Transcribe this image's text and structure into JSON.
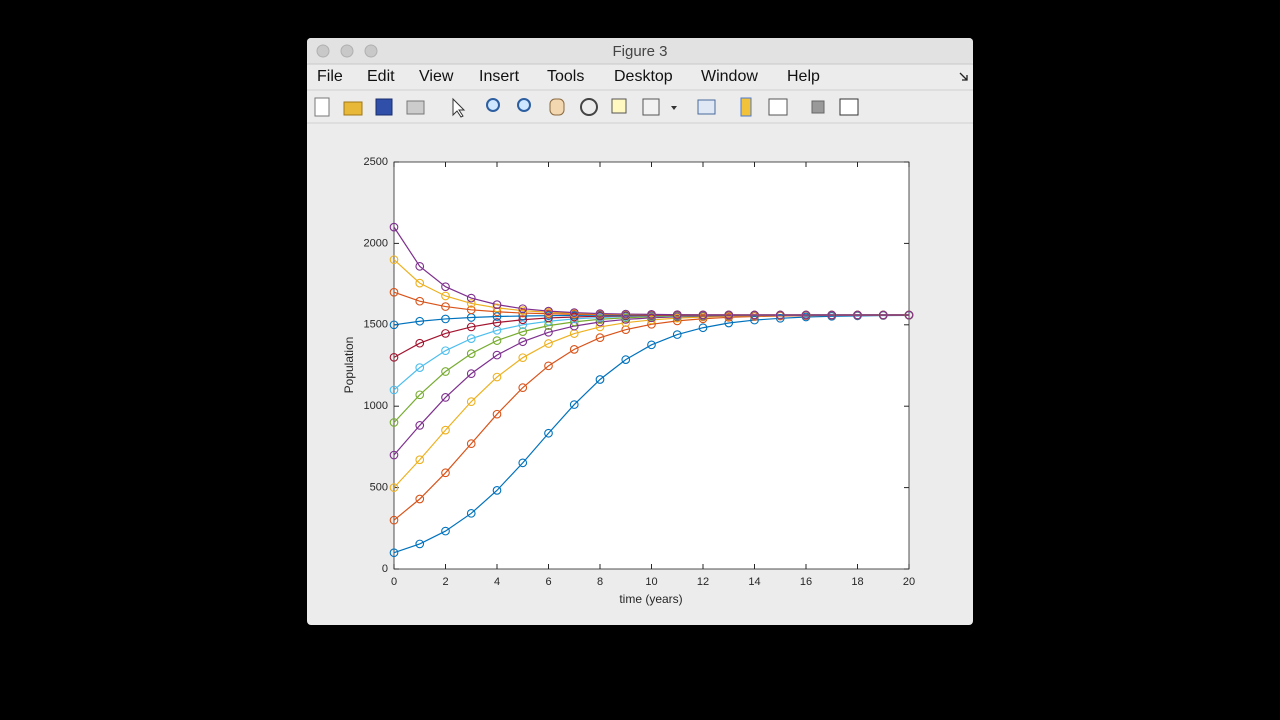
{
  "window": {
    "title": "Figure 3",
    "menu": [
      "File",
      "Edit",
      "View",
      "Insert",
      "Tools",
      "Desktop",
      "Window",
      "Help"
    ]
  },
  "chart_data": {
    "type": "line",
    "xlabel": "time (years)",
    "ylabel": "Population",
    "x": [
      0,
      1,
      2,
      3,
      4,
      5,
      6,
      7,
      8,
      9,
      10,
      11,
      12,
      13,
      14,
      15,
      16,
      17,
      18,
      19,
      20
    ],
    "xlim": [
      0,
      20
    ],
    "ylim": [
      0,
      2500
    ],
    "xticks": [
      0,
      2,
      4,
      6,
      8,
      10,
      12,
      14,
      16,
      18,
      20
    ],
    "yticks": [
      0,
      500,
      1000,
      1500,
      2000,
      2500
    ],
    "grid": false,
    "marker": "circle",
    "series": [
      {
        "color": "#0072BD",
        "values": [
          100,
          154,
          233,
          342,
          483,
          652,
          834,
          1010,
          1164,
          1286,
          1377,
          1440,
          1482,
          1511,
          1529,
          1540,
          1548,
          1552,
          1555,
          1557,
          1558
        ]
      },
      {
        "color": "#D95319",
        "values": [
          300,
          430,
          591,
          770,
          951,
          1114,
          1248,
          1349,
          1421,
          1470,
          1503,
          1524,
          1537,
          1546,
          1551,
          1554,
          1556,
          1558,
          1559,
          1559,
          1560
        ]
      },
      {
        "color": "#EDB120",
        "values": [
          500,
          671,
          853,
          1028,
          1179,
          1298,
          1385,
          1446,
          1487,
          1513,
          1530,
          1541,
          1548,
          1553,
          1555,
          1557,
          1558,
          1559,
          1559,
          1560,
          1560
        ]
      },
      {
        "color": "#7E2F8E",
        "values": [
          700,
          882,
          1054,
          1200,
          1314,
          1396,
          1454,
          1492,
          1517,
          1533,
          1543,
          1549,
          1553,
          1556,
          1557,
          1558,
          1559,
          1559,
          1560,
          1560,
          1560
        ]
      },
      {
        "color": "#77AC30",
        "values": [
          900,
          1070,
          1213,
          1323,
          1403,
          1458,
          1495,
          1518,
          1534,
          1543,
          1550,
          1553,
          1556,
          1558,
          1558,
          1559,
          1560,
          1560,
          1560,
          1560,
          1560
        ]
      },
      {
        "color": "#4DBEEE",
        "values": [
          1100,
          1237,
          1341,
          1415,
          1466,
          1500,
          1522,
          1536,
          1545,
          1551,
          1554,
          1556,
          1558,
          1559,
          1559,
          1560,
          1560,
          1560,
          1560,
          1560,
          1560
        ]
      },
      {
        "color": "#A2142F",
        "values": [
          1300,
          1387,
          1447,
          1487,
          1514,
          1531,
          1542,
          1548,
          1553,
          1555,
          1557,
          1558,
          1559,
          1559,
          1560,
          1560,
          1560,
          1560,
          1560,
          1560,
          1560
        ]
      },
      {
        "color": "#0072BD",
        "values": [
          1500,
          1522,
          1536,
          1545,
          1551,
          1554,
          1556,
          1558,
          1559,
          1559,
          1560,
          1560,
          1560,
          1560,
          1560,
          1560,
          1560,
          1560,
          1560,
          1560,
          1560
        ]
      },
      {
        "color": "#D95319",
        "values": [
          1700,
          1645,
          1612,
          1592,
          1580,
          1572,
          1568,
          1565,
          1563,
          1562,
          1561,
          1561,
          1560,
          1560,
          1560,
          1560,
          1560,
          1560,
          1560,
          1560,
          1560
        ]
      },
      {
        "color": "#EDB120",
        "values": [
          1900,
          1756,
          1677,
          1631,
          1604,
          1587,
          1577,
          1570,
          1567,
          1564,
          1563,
          1562,
          1561,
          1561,
          1560,
          1560,
          1560,
          1560,
          1560,
          1560,
          1560
        ]
      },
      {
        "color": "#7E2F8E",
        "values": [
          2100,
          1859,
          1734,
          1664,
          1624,
          1599,
          1584,
          1575,
          1569,
          1566,
          1564,
          1562,
          1561,
          1561,
          1560,
          1560,
          1560,
          1560,
          1560,
          1560,
          1560
        ]
      }
    ]
  }
}
